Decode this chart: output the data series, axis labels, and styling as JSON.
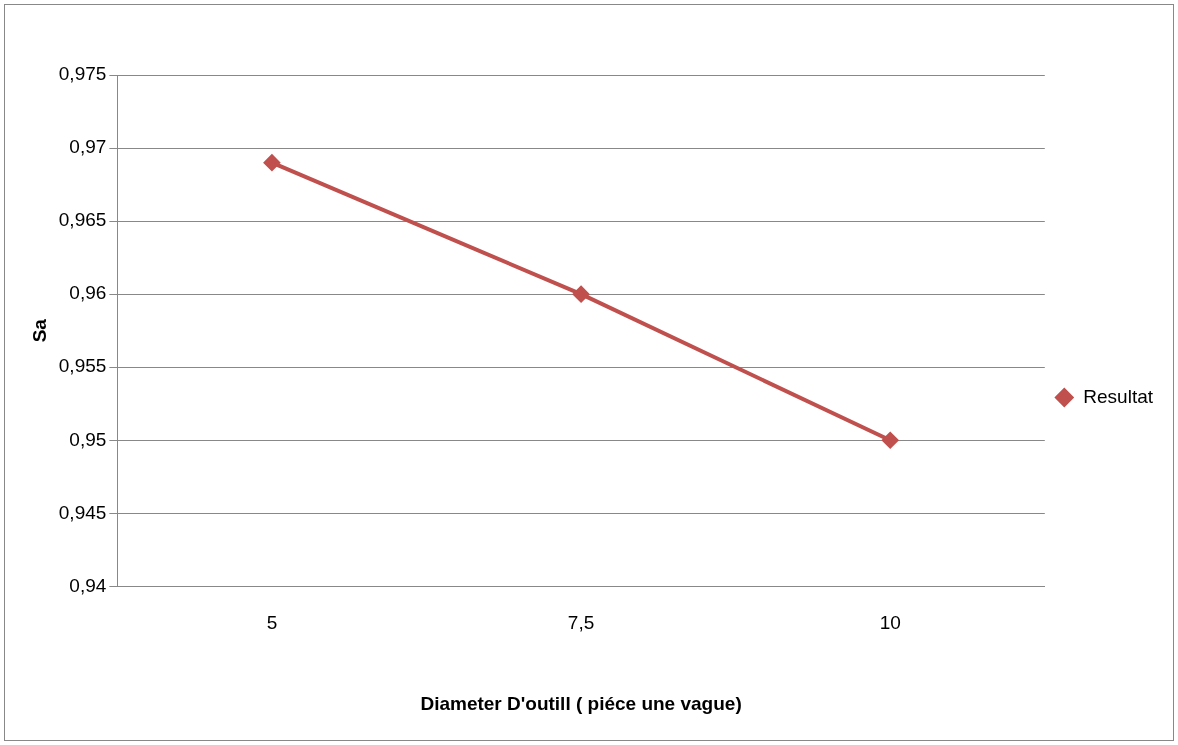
{
  "chart_data": {
    "type": "line",
    "xlabel": "Diameter D'outill ( piéce une vague)",
    "ylabel": "Sa",
    "categories": [
      "5",
      "7,5",
      "10"
    ],
    "series": [
      {
        "name": "Resultat",
        "color": "#c0504d",
        "values": [
          0.969,
          0.96,
          0.95
        ]
      }
    ],
    "ylim": [
      0.94,
      0.975
    ],
    "yticks": [
      {
        "value": 0.94,
        "label": "0,94"
      },
      {
        "value": 0.945,
        "label": "0,945"
      },
      {
        "value": 0.95,
        "label": "0,95"
      },
      {
        "value": 0.955,
        "label": "0,955"
      },
      {
        "value": 0.96,
        "label": "0,96"
      },
      {
        "value": 0.965,
        "label": "0,965"
      },
      {
        "value": 0.97,
        "label": "0,97"
      },
      {
        "value": 0.975,
        "label": "0,975"
      }
    ],
    "grid": "y",
    "legend": "right",
    "marker": "diamond",
    "line_style": "solid"
  }
}
